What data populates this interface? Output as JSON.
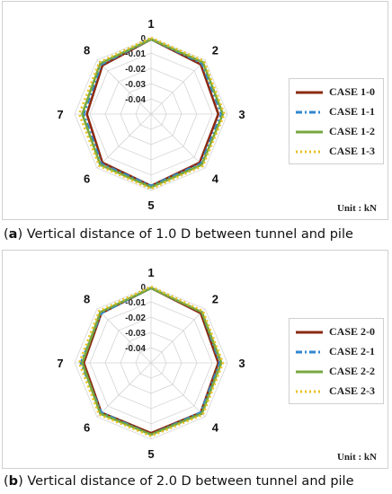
{
  "chart_data": [
    {
      "type": "radar",
      "panel_label": "a",
      "caption": "Vertical distance of 1.0 D between tunnel and pile",
      "categories": [
        "1",
        "2",
        "3",
        "4",
        "5",
        "6",
        "7",
        "8"
      ],
      "radial_ticks": [
        "0",
        "-0.01",
        "-0.02",
        "-0.03",
        "-0.04"
      ],
      "rlim": [
        -0.05,
        0
      ],
      "unit": "Unit : kN",
      "legend_position": "right",
      "series": [
        {
          "name": "CASE 1-0",
          "color": "#8b2a10",
          "dash": "solid",
          "values": [
            -0.001,
            -0.004,
            -0.006,
            -0.005,
            -0.003,
            -0.005,
            -0.008,
            -0.005
          ]
        },
        {
          "name": "CASE 1-1",
          "color": "#2f86d0",
          "dash": "dashdot",
          "values": [
            -0.001,
            -0.003,
            -0.004,
            -0.004,
            -0.003,
            -0.004,
            -0.006,
            -0.004
          ]
        },
        {
          "name": "CASE 1-2",
          "color": "#77a840",
          "dash": "solid",
          "values": [
            -0.001,
            -0.002,
            -0.003,
            -0.003,
            -0.002,
            -0.003,
            -0.005,
            -0.003
          ]
        },
        {
          "name": "CASE 1-3",
          "color": "#e8c020",
          "dash": "dotted",
          "values": [
            0.0,
            -0.001,
            -0.002,
            -0.002,
            -0.001,
            -0.002,
            -0.003,
            -0.002
          ]
        }
      ]
    },
    {
      "type": "radar",
      "panel_label": "b",
      "caption": "Vertical distance of 2.0 D between tunnel and pile",
      "categories": [
        "1",
        "2",
        "3",
        "4",
        "5",
        "6",
        "7",
        "8"
      ],
      "radial_ticks": [
        "0",
        "-0.01",
        "-0.02",
        "-0.03",
        "-0.04"
      ],
      "rlim": [
        -0.05,
        0
      ],
      "unit": "Unit : kN",
      "legend_position": "right",
      "series": [
        {
          "name": "CASE 2-0",
          "color": "#8b2a10",
          "dash": "solid",
          "values": [
            -0.001,
            -0.004,
            -0.006,
            -0.004,
            -0.004,
            -0.004,
            -0.006,
            -0.004
          ]
        },
        {
          "name": "CASE 2-1",
          "color": "#2f86d0",
          "dash": "dashdot",
          "values": [
            -0.001,
            -0.003,
            -0.005,
            -0.004,
            -0.003,
            -0.004,
            -0.004,
            -0.004
          ]
        },
        {
          "name": "CASE 2-2",
          "color": "#77a840",
          "dash": "solid",
          "values": [
            -0.001,
            -0.003,
            -0.004,
            -0.003,
            -0.003,
            -0.003,
            -0.005,
            -0.003
          ]
        },
        {
          "name": "CASE 2-3",
          "color": "#e8c020",
          "dash": "dotted",
          "values": [
            0.0,
            -0.002,
            -0.003,
            -0.002,
            -0.002,
            -0.002,
            -0.003,
            -0.002
          ]
        }
      ]
    }
  ]
}
